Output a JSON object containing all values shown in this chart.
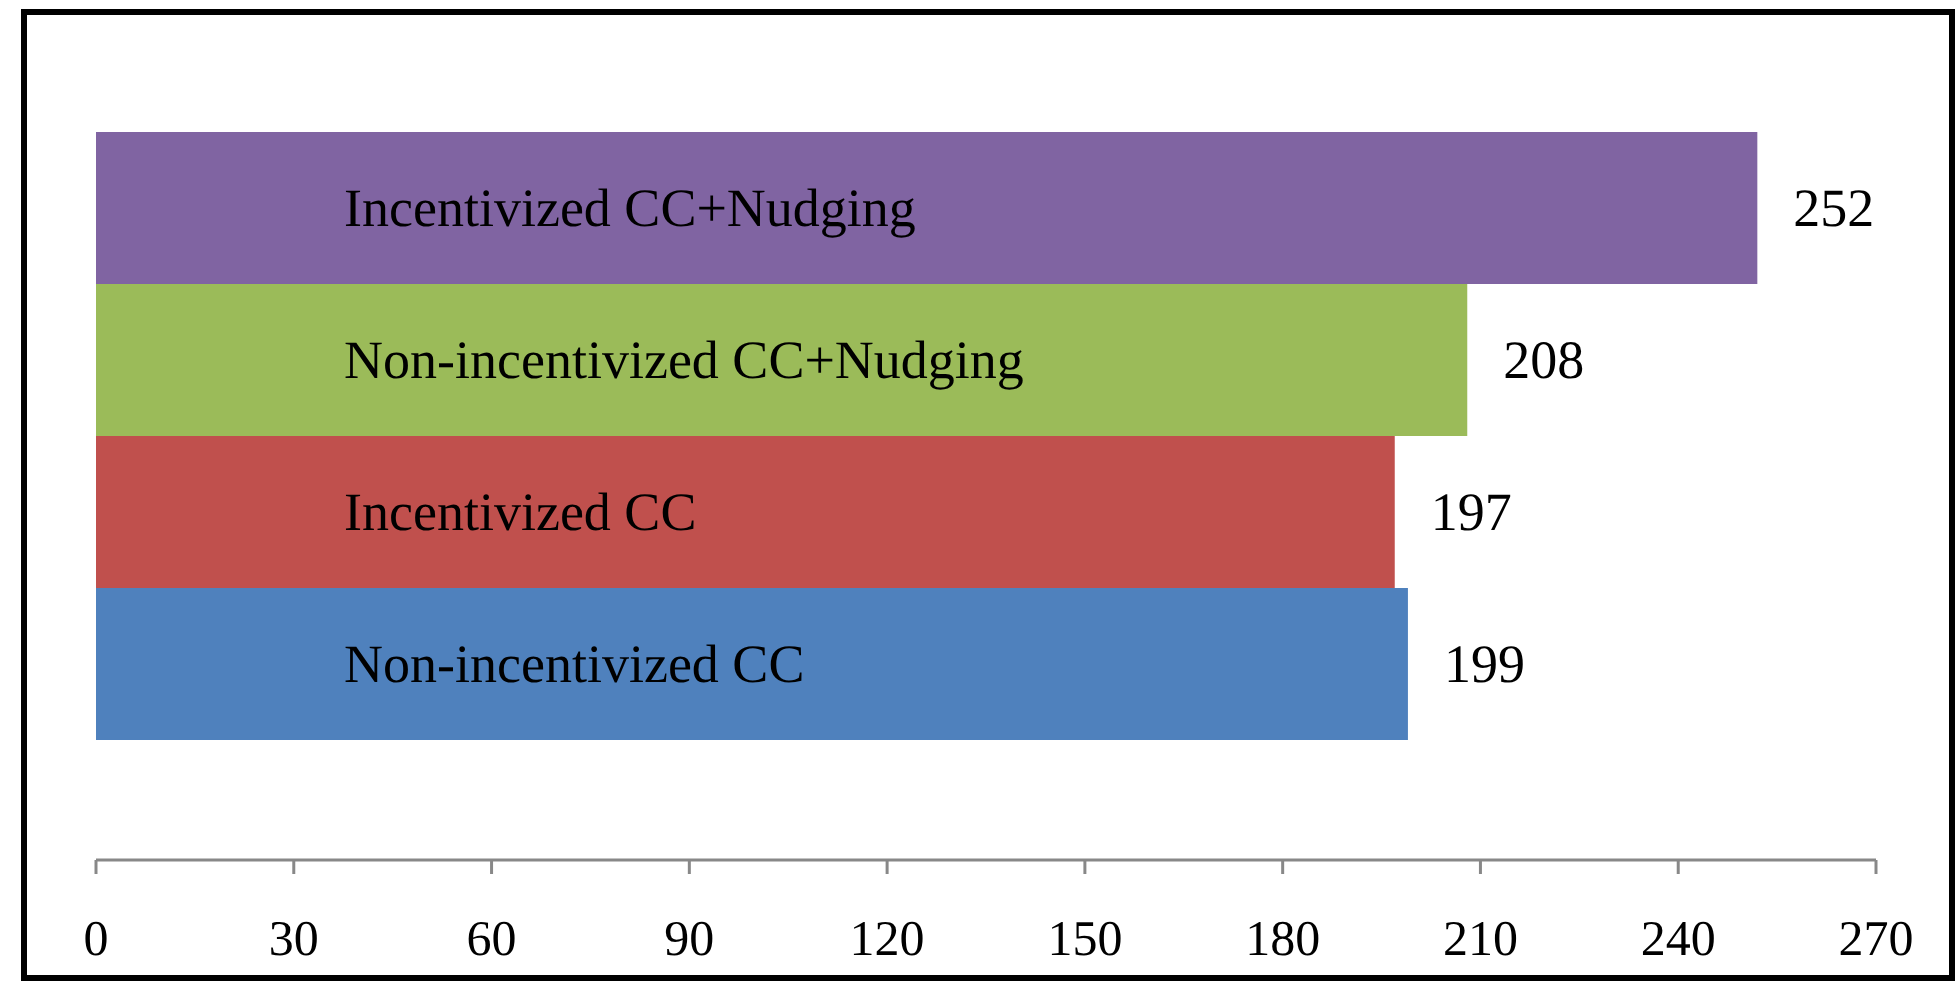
{
  "chart_data": {
    "type": "bar",
    "orientation": "horizontal",
    "categories": [
      "Incentivized CC+Nudging",
      "Non-incentivized CC+Nudging",
      "Incentivized CC",
      "Non-incentivized CC"
    ],
    "values": [
      252,
      208,
      197,
      199
    ],
    "colors": [
      "#8064a2",
      "#9bbb59",
      "#c0504d",
      "#4f81bd"
    ],
    "xlim": [
      0,
      270
    ],
    "xticks": [
      0,
      30,
      60,
      90,
      120,
      150,
      180,
      210,
      240,
      270
    ],
    "data_labels": true,
    "grid": false
  }
}
